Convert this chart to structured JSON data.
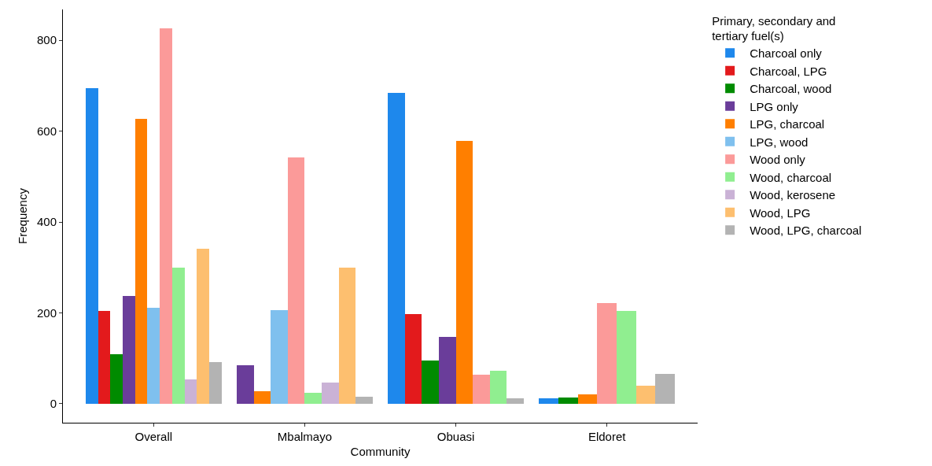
{
  "chart_data": {
    "type": "bar",
    "xlabel": "Community",
    "ylabel": "Frequency",
    "legend_title": "Primary, secondary and tertiary fuel(s)",
    "categories": [
      "Overall",
      "Mbalmayo",
      "Obuasi",
      "Eldoret"
    ],
    "series": [
      {
        "name": "Charcoal only",
        "color": "#1e88ec",
        "values": [
          694,
          null,
          684,
          12
        ]
      },
      {
        "name": "Charcoal, LPG",
        "color": "#e31a1c",
        "values": [
          204,
          null,
          197,
          null
        ]
      },
      {
        "name": "Charcoal, wood",
        "color": "#008b00",
        "values": [
          109,
          null,
          95,
          14
        ]
      },
      {
        "name": "LPG only",
        "color": "#6a3d9a",
        "values": [
          237,
          85,
          147,
          null
        ]
      },
      {
        "name": "LPG, charcoal",
        "color": "#ff7f00",
        "values": [
          627,
          28,
          578,
          21
        ]
      },
      {
        "name": "LPG, wood",
        "color": "#7fc0ee",
        "values": [
          211,
          206,
          null,
          null
        ]
      },
      {
        "name": "Wood only",
        "color": "#fb9a99",
        "values": [
          826,
          542,
          64,
          222
        ]
      },
      {
        "name": "Wood, charcoal",
        "color": "#90ee90",
        "values": [
          300,
          24,
          73,
          204
        ]
      },
      {
        "name": "Wood, kerosene",
        "color": "#cab2d6",
        "values": [
          54,
          47,
          null,
          null
        ]
      },
      {
        "name": "Wood, LPG",
        "color": "#fdbf6f",
        "values": [
          341,
          300,
          null,
          40
        ]
      },
      {
        "name": "Wood, LPG, charcoal",
        "color": "#b3b3b3",
        "values": [
          92,
          16,
          12,
          66
        ]
      }
    ],
    "ylim": [
      -42,
      868
    ],
    "yticks": [
      0,
      200,
      400,
      600,
      800
    ],
    "grid": false,
    "legend": "right"
  }
}
